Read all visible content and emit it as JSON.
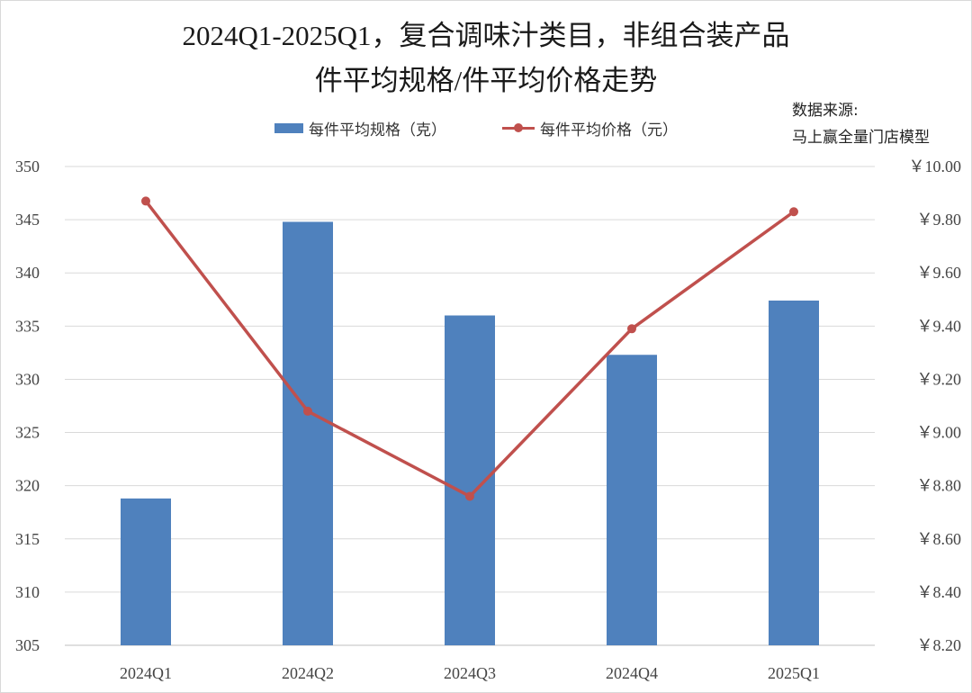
{
  "chart_data": {
    "type": "bar+line",
    "title_line1": "2024Q1-2025Q1，复合调味汁类目，非组合装产品",
    "title_line2": "件平均规格/件平均价格走势",
    "source_line1": "数据来源:",
    "source_line2": "马上赢全量门店模型",
    "categories": [
      "2024Q1",
      "2024Q2",
      "2024Q3",
      "2024Q4",
      "2025Q1"
    ],
    "series": [
      {
        "name": "每件平均规格（克）",
        "type": "bar",
        "axis": "left",
        "color": "#4f81bd",
        "values": [
          318.8,
          344.8,
          336.0,
          332.3,
          337.4
        ]
      },
      {
        "name": "每件平均价格（元）",
        "type": "line",
        "axis": "right",
        "color": "#c0504d",
        "values": [
          9.87,
          9.08,
          8.76,
          9.39,
          9.83
        ]
      }
    ],
    "left_axis": {
      "min": 305,
      "max": 350,
      "step": 5,
      "tick_labels": [
        "305",
        "310",
        "315",
        "320",
        "325",
        "330",
        "335",
        "340",
        "345",
        "350"
      ]
    },
    "right_axis": {
      "min": 8.2,
      "max": 10.0,
      "step": 0.2,
      "tick_labels": [
        "￥8.20",
        "￥8.40",
        "￥8.60",
        "￥8.80",
        "￥9.00",
        "￥9.20",
        "￥9.40",
        "￥9.60",
        "￥9.80",
        "￥10.00"
      ]
    },
    "grid": true,
    "legend_position": "top"
  }
}
